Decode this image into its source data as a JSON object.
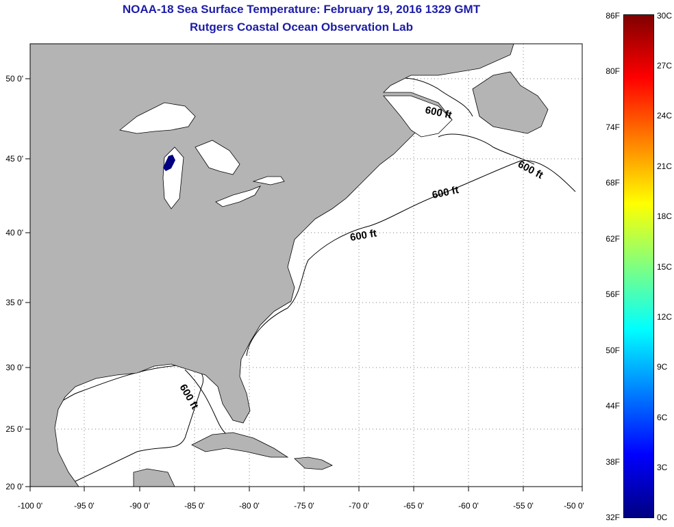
{
  "title": "NOAA-18 Sea Surface Temperature:  February 19, 2016 1329 GMT",
  "subtitle": "Rutgers Coastal Ocean Observation Lab",
  "map": {
    "lon_labels": [
      "-100 0'",
      "-95 0'",
      "-90 0'",
      "-85 0'",
      "-80 0'",
      "-75 0'",
      "-70 0'",
      "-65 0'",
      "-60 0'",
      "-55 0'",
      "-50 0'"
    ],
    "lat_labels": [
      "50 0'",
      "45 0'",
      "40 0'",
      "35 0'",
      "30 0'",
      "25 0'",
      "20 0'"
    ],
    "depth_labels": [
      "600 ft",
      "600 ft",
      "600 ft",
      "600 ft",
      "600 ft"
    ],
    "land_color": "#b4b4b4",
    "ocean_color": "#ffffff"
  },
  "colorbar": {
    "fahrenheit_labels": [
      "86F",
      "80F",
      "74F",
      "68F",
      "62F",
      "56F",
      "50F",
      "44F",
      "38F",
      "32F"
    ],
    "celsius_labels": [
      "30C",
      "27C",
      "24C",
      "21C",
      "18C",
      "15C",
      "12C",
      "9C",
      "6C",
      "3C",
      "0C"
    ],
    "colors": [
      "#000080",
      "#0000ff",
      "#0080ff",
      "#00ffff",
      "#80ff80",
      "#ffff00",
      "#ff8000",
      "#ff0000",
      "#800000"
    ]
  }
}
